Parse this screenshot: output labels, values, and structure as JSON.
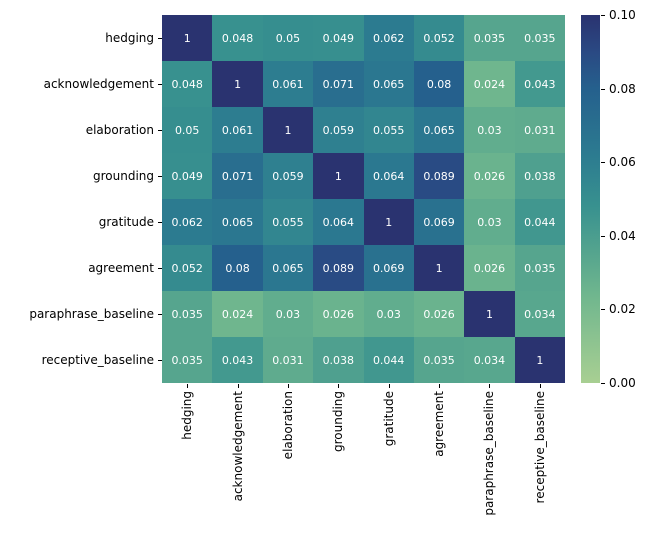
{
  "figure": {
    "background": "#ffffff",
    "annotation_text_color": "#ffffff",
    "tick_text_color": "#000000"
  },
  "chart_data": {
    "type": "heatmap",
    "title": "",
    "xlabel": "",
    "ylabel": "",
    "categories": [
      "hedging",
      "acknowledgement",
      "elaboration",
      "grounding",
      "gratitude",
      "agreement",
      "paraphrase_baseline",
      "receptive_baseline"
    ],
    "matrix": [
      [
        1,
        0.048,
        0.05,
        0.049,
        0.062,
        0.052,
        0.035,
        0.035
      ],
      [
        0.048,
        1,
        0.061,
        0.071,
        0.065,
        0.08,
        0.024,
        0.043
      ],
      [
        0.05,
        0.061,
        1,
        0.059,
        0.055,
        0.065,
        0.03,
        0.031
      ],
      [
        0.049,
        0.071,
        0.059,
        1,
        0.064,
        0.089,
        0.026,
        0.038
      ],
      [
        0.062,
        0.065,
        0.055,
        0.064,
        1,
        0.069,
        0.03,
        0.044
      ],
      [
        0.052,
        0.08,
        0.065,
        0.089,
        0.069,
        1,
        0.026,
        0.035
      ],
      [
        0.035,
        0.024,
        0.03,
        0.026,
        0.03,
        0.026,
        1,
        0.034
      ],
      [
        0.035,
        0.043,
        0.031,
        0.038,
        0.044,
        0.035,
        0.034,
        1
      ]
    ],
    "cell_labels": [
      [
        "1",
        "0.048",
        "0.05",
        "0.049",
        "0.062",
        "0.052",
        "0.035",
        "0.035"
      ],
      [
        "0.048",
        "1",
        "0.061",
        "0.071",
        "0.065",
        "0.08",
        "0.024",
        "0.043"
      ],
      [
        "0.05",
        "0.061",
        "1",
        "0.059",
        "0.055",
        "0.065",
        "0.03",
        "0.031"
      ],
      [
        "0.049",
        "0.071",
        "0.059",
        "1",
        "0.064",
        "0.089",
        "0.026",
        "0.038"
      ],
      [
        "0.062",
        "0.065",
        "0.055",
        "0.064",
        "1",
        "0.069",
        "0.03",
        "0.044"
      ],
      [
        "0.052",
        "0.08",
        "0.065",
        "0.089",
        "0.069",
        "1",
        "0.026",
        "0.035"
      ],
      [
        "0.035",
        "0.024",
        "0.03",
        "0.026",
        "0.03",
        "0.026",
        "1",
        "0.034"
      ],
      [
        "0.035",
        "0.043",
        "0.031",
        "0.038",
        "0.044",
        "0.035",
        "0.034",
        "1"
      ]
    ],
    "vmin": 0,
    "vmax": 0.1,
    "legend_position": "right-colorbar",
    "grid": false,
    "colorbar_ticks": [
      "0.10",
      "0.08",
      "0.06",
      "0.04",
      "0.02",
      "0.00"
    ],
    "colormap": {
      "name": "crest-like",
      "anchors": [
        {
          "t": 0.0,
          "color": "#a8cf92"
        },
        {
          "t": 0.24,
          "color": "#6fb68e"
        },
        {
          "t": 0.48,
          "color": "#38918f"
        },
        {
          "t": 0.62,
          "color": "#2c7b90"
        },
        {
          "t": 0.8,
          "color": "#25608d"
        },
        {
          "t": 0.9,
          "color": "#2a4983"
        },
        {
          "t": 1.0,
          "color": "#2a3370"
        }
      ]
    }
  }
}
